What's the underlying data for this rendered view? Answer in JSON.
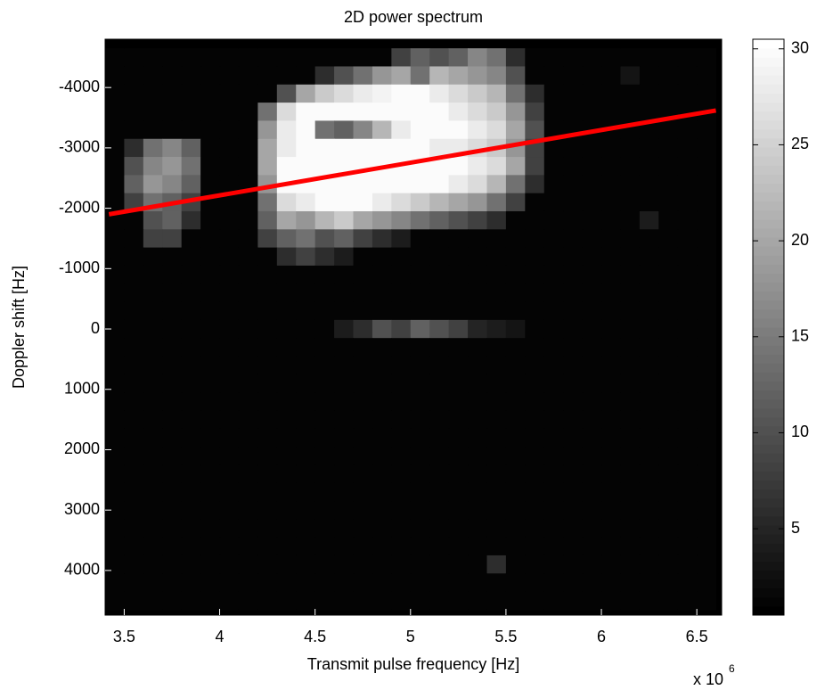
{
  "chart_data": {
    "type": "heatmap",
    "title": "2D power spectrum",
    "xlabel": "Transmit pulse frequency [Hz]",
    "ylabel": "Doppler shift [Hz]",
    "x_multiplier": {
      "base": "x 10",
      "exponent": "6"
    },
    "colormap": "gray",
    "xlim": [
      3400000,
      6630000
    ],
    "ylim": [
      -4800,
      4740
    ],
    "y_reversed": true,
    "clim": [
      0.5,
      30.5
    ],
    "xticks": [
      {
        "value": 3500000,
        "label": "3.5"
      },
      {
        "value": 4000000,
        "label": "4"
      },
      {
        "value": 4500000,
        "label": "4.5"
      },
      {
        "value": 5000000,
        "label": "5"
      },
      {
        "value": 5500000,
        "label": "5.5"
      },
      {
        "value": 6000000,
        "label": "6"
      },
      {
        "value": 6500000,
        "label": "6.5"
      }
    ],
    "yticks": [
      -4000,
      -3000,
      -2000,
      -1000,
      0,
      1000,
      2000,
      3000,
      4000
    ],
    "cticks": [
      5,
      10,
      15,
      20,
      25,
      30
    ],
    "x": [
      3450000,
      3550000,
      3650000,
      3750000,
      3850000,
      3950000,
      4050000,
      4150000,
      4250000,
      4350000,
      4450000,
      4550000,
      4650000,
      4750000,
      4850000,
      4950000,
      5050000,
      5150000,
      5250000,
      5350000,
      5450000,
      5550000,
      5650000,
      5750000,
      5850000,
      5950000,
      6050000,
      6150000,
      6250000,
      6350000,
      6450000,
      6550000
    ],
    "y": [
      -4500,
      -4200,
      -3900,
      -3600,
      -3300,
      -3000,
      -2700,
      -2400,
      -2100,
      -1800,
      -1500,
      -1200,
      -900,
      -600,
      -300,
      0,
      300,
      600,
      900,
      1200,
      1500,
      1800,
      2100,
      2400,
      2700,
      3000,
      3300,
      3600,
      3900,
      4200,
      4500
    ],
    "z": [
      [
        1,
        1,
        1,
        1,
        1,
        1,
        1,
        1,
        1,
        1,
        1,
        1,
        1,
        1,
        1,
        8,
        12,
        10,
        12,
        16,
        14,
        6,
        1,
        1,
        1,
        1,
        1,
        1,
        1,
        1,
        1,
        1
      ],
      [
        1,
        1,
        1,
        1,
        1,
        1,
        1,
        1,
        1,
        1,
        1,
        6,
        10,
        14,
        18,
        20,
        14,
        22,
        20,
        18,
        16,
        10,
        1,
        1,
        1,
        1,
        1,
        3,
        1,
        1,
        1,
        1
      ],
      [
        1,
        1,
        1,
        1,
        1,
        1,
        1,
        1,
        1,
        10,
        20,
        24,
        26,
        28,
        29,
        30,
        30,
        28,
        26,
        24,
        22,
        14,
        6,
        1,
        1,
        1,
        1,
        1,
        1,
        1,
        1,
        1
      ],
      [
        1,
        1,
        1,
        1,
        1,
        1,
        1,
        1,
        14,
        26,
        30,
        30,
        30,
        30,
        30,
        30,
        30,
        30,
        28,
        26,
        24,
        18,
        8,
        1,
        1,
        1,
        1,
        1,
        1,
        1,
        1,
        1
      ],
      [
        1,
        1,
        1,
        1,
        1,
        1,
        1,
        1,
        18,
        28,
        30,
        14,
        12,
        16,
        22,
        28,
        30,
        30,
        30,
        28,
        26,
        20,
        10,
        1,
        1,
        1,
        1,
        1,
        1,
        1,
        1,
        1
      ],
      [
        1,
        6,
        14,
        16,
        12,
        1,
        1,
        1,
        20,
        28,
        30,
        30,
        30,
        30,
        30,
        30,
        30,
        28,
        28,
        26,
        24,
        18,
        8,
        1,
        1,
        1,
        1,
        1,
        1,
        1,
        1,
        1
      ],
      [
        1,
        10,
        16,
        18,
        14,
        1,
        1,
        1,
        20,
        30,
        30,
        30,
        30,
        30,
        30,
        30,
        30,
        30,
        30,
        28,
        26,
        20,
        8,
        1,
        1,
        1,
        1,
        1,
        1,
        1,
        1,
        1
      ],
      [
        1,
        12,
        18,
        16,
        12,
        1,
        1,
        1,
        18,
        30,
        30,
        30,
        30,
        30,
        30,
        30,
        30,
        30,
        28,
        26,
        22,
        14,
        6,
        1,
        1,
        1,
        1,
        1,
        1,
        1,
        1,
        1
      ],
      [
        1,
        8,
        14,
        12,
        8,
        1,
        1,
        1,
        14,
        26,
        28,
        30,
        30,
        30,
        28,
        26,
        24,
        22,
        20,
        18,
        14,
        8,
        1,
        1,
        1,
        1,
        1,
        1,
        1,
        1,
        1,
        1
      ],
      [
        1,
        1,
        10,
        12,
        6,
        1,
        1,
        1,
        12,
        20,
        18,
        22,
        24,
        20,
        18,
        16,
        14,
        12,
        10,
        8,
        6,
        1,
        1,
        1,
        1,
        1,
        1,
        1,
        4,
        1,
        1,
        1
      ],
      [
        1,
        1,
        8,
        8,
        1,
        1,
        1,
        1,
        8,
        12,
        14,
        10,
        12,
        8,
        6,
        4,
        1,
        1,
        1,
        1,
        1,
        1,
        1,
        1,
        1,
        1,
        1,
        1,
        1,
        1,
        1,
        1
      ],
      [
        1,
        1,
        1,
        1,
        1,
        1,
        1,
        1,
        1,
        6,
        8,
        6,
        4,
        1,
        1,
        1,
        1,
        1,
        1,
        1,
        1,
        1,
        1,
        1,
        1,
        1,
        1,
        1,
        1,
        1,
        1,
        1
      ],
      [
        1,
        1,
        1,
        1,
        1,
        1,
        1,
        1,
        1,
        1,
        1,
        1,
        1,
        1,
        1,
        1,
        1,
        1,
        1,
        1,
        1,
        1,
        1,
        1,
        1,
        1,
        1,
        1,
        1,
        1,
        1,
        1
      ],
      [
        1,
        1,
        1,
        1,
        1,
        1,
        1,
        1,
        1,
        1,
        1,
        1,
        1,
        1,
        1,
        1,
        1,
        1,
        1,
        1,
        1,
        1,
        1,
        1,
        1,
        1,
        1,
        1,
        1,
        1,
        1,
        1
      ],
      [
        1,
        1,
        1,
        1,
        1,
        1,
        1,
        1,
        1,
        1,
        1,
        1,
        1,
        1,
        1,
        1,
        1,
        1,
        1,
        1,
        1,
        1,
        1,
        1,
        1,
        1,
        1,
        1,
        1,
        1,
        1,
        1
      ],
      [
        1,
        1,
        1,
        1,
        1,
        1,
        1,
        1,
        1,
        1,
        1,
        1,
        4,
        6,
        10,
        8,
        12,
        10,
        8,
        5,
        4,
        3,
        1,
        1,
        1,
        1,
        1,
        1,
        1,
        1,
        1,
        1
      ],
      [
        1,
        1,
        1,
        1,
        1,
        1,
        1,
        1,
        1,
        1,
        1,
        1,
        1,
        1,
        1,
        1,
        1,
        1,
        1,
        1,
        1,
        1,
        1,
        1,
        1,
        1,
        1,
        1,
        1,
        1,
        1,
        1
      ],
      [
        1,
        1,
        1,
        1,
        1,
        1,
        1,
        1,
        1,
        1,
        1,
        1,
        1,
        1,
        1,
        1,
        1,
        1,
        1,
        1,
        1,
        1,
        1,
        1,
        1,
        1,
        1,
        1,
        1,
        1,
        1,
        1
      ],
      [
        1,
        1,
        1,
        1,
        1,
        1,
        1,
        1,
        1,
        1,
        1,
        1,
        1,
        1,
        1,
        1,
        1,
        1,
        1,
        1,
        1,
        1,
        1,
        1,
        1,
        1,
        1,
        1,
        1,
        1,
        1,
        1
      ],
      [
        1,
        1,
        1,
        1,
        1,
        1,
        1,
        1,
        1,
        1,
        1,
        1,
        1,
        1,
        1,
        1,
        1,
        1,
        1,
        1,
        1,
        1,
        1,
        1,
        1,
        1,
        1,
        1,
        1,
        1,
        1,
        1
      ],
      [
        1,
        1,
        1,
        1,
        1,
        1,
        1,
        1,
        1,
        1,
        1,
        1,
        1,
        1,
        1,
        1,
        1,
        1,
        1,
        1,
        1,
        1,
        1,
        1,
        1,
        1,
        1,
        1,
        1,
        1,
        1,
        1
      ],
      [
        1,
        1,
        1,
        1,
        1,
        1,
        1,
        1,
        1,
        1,
        1,
        1,
        1,
        1,
        1,
        1,
        1,
        1,
        1,
        1,
        1,
        1,
        1,
        1,
        1,
        1,
        1,
        1,
        1,
        1,
        1,
        1
      ],
      [
        1,
        1,
        1,
        1,
        1,
        1,
        1,
        1,
        1,
        1,
        1,
        1,
        1,
        1,
        1,
        1,
        1,
        1,
        1,
        1,
        1,
        1,
        1,
        1,
        1,
        1,
        1,
        1,
        1,
        1,
        1,
        1
      ],
      [
        1,
        1,
        1,
        1,
        1,
        1,
        1,
        1,
        1,
        1,
        1,
        1,
        1,
        1,
        1,
        1,
        1,
        1,
        1,
        1,
        1,
        1,
        1,
        1,
        1,
        1,
        1,
        1,
        1,
        1,
        1,
        1
      ],
      [
        1,
        1,
        1,
        1,
        1,
        1,
        1,
        1,
        1,
        1,
        1,
        1,
        1,
        1,
        1,
        1,
        1,
        1,
        1,
        1,
        1,
        1,
        1,
        1,
        1,
        1,
        1,
        1,
        1,
        1,
        1,
        1
      ],
      [
        1,
        1,
        1,
        1,
        1,
        1,
        1,
        1,
        1,
        1,
        1,
        1,
        1,
        1,
        1,
        1,
        1,
        1,
        1,
        1,
        1,
        1,
        1,
        1,
        1,
        1,
        1,
        1,
        1,
        1,
        1,
        1
      ],
      [
        1,
        1,
        1,
        1,
        1,
        1,
        1,
        1,
        1,
        1,
        1,
        1,
        1,
        1,
        1,
        1,
        1,
        1,
        1,
        1,
        1,
        1,
        1,
        1,
        1,
        1,
        1,
        1,
        1,
        1,
        1,
        1
      ],
      [
        1,
        1,
        1,
        1,
        1,
        1,
        1,
        1,
        1,
        1,
        1,
        1,
        1,
        1,
        1,
        1,
        1,
        1,
        1,
        1,
        1,
        1,
        1,
        1,
        1,
        1,
        1,
        1,
        1,
        1,
        1,
        1
      ],
      [
        1,
        1,
        1,
        1,
        1,
        1,
        1,
        1,
        1,
        1,
        1,
        1,
        1,
        1,
        1,
        1,
        1,
        1,
        1,
        1,
        6,
        1,
        1,
        1,
        1,
        1,
        1,
        1,
        1,
        1,
        1,
        1
      ],
      [
        1,
        1,
        1,
        1,
        1,
        1,
        1,
        1,
        1,
        1,
        1,
        1,
        1,
        1,
        1,
        1,
        1,
        1,
        1,
        1,
        1,
        1,
        1,
        1,
        1,
        1,
        1,
        1,
        1,
        1,
        1,
        1
      ],
      [
        1,
        1,
        1,
        1,
        1,
        1,
        1,
        1,
        1,
        1,
        1,
        1,
        1,
        1,
        1,
        1,
        1,
        1,
        1,
        1,
        1,
        1,
        1,
        1,
        1,
        1,
        1,
        1,
        1,
        1,
        1,
        1
      ]
    ],
    "line": {
      "x": [
        3420000,
        6600000
      ],
      "y": [
        -1900,
        -3620
      ],
      "color": "#ff0000"
    }
  }
}
